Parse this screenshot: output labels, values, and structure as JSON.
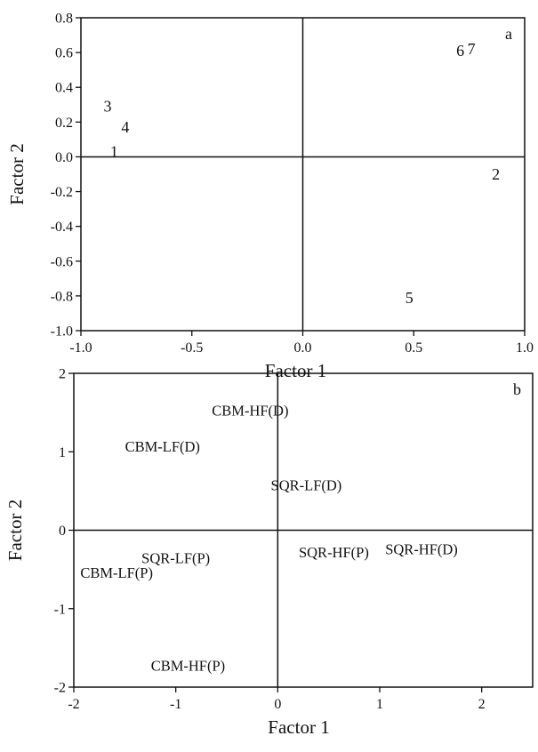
{
  "chart_data": [
    {
      "type": "scatter",
      "panel_label": "a",
      "xlabel": "Factor 1",
      "ylabel": "Factor 2",
      "xlim": [
        -1.0,
        1.0
      ],
      "ylim": [
        -1.0,
        0.8
      ],
      "xticks": [
        "-1.0",
        "-0.5",
        "0.0",
        "0.5",
        "1.0"
      ],
      "xtick_values": [
        -1.0,
        -0.5,
        0.0,
        0.5,
        1.0
      ],
      "yticks": [
        "0.8",
        "0.6",
        "0.4",
        "0.2",
        "0.0",
        "-0.2",
        "-0.4",
        "-0.6",
        "-0.8",
        "-1.0"
      ],
      "ytick_values": [
        0.8,
        0.6,
        0.4,
        0.2,
        0.0,
        -0.2,
        -0.4,
        -0.6,
        -0.8,
        -1.0
      ],
      "points": [
        {
          "label": "1",
          "x": -0.85,
          "y": 0.03
        },
        {
          "label": "2",
          "x": 0.87,
          "y": -0.1
        },
        {
          "label": "3",
          "x": -0.88,
          "y": 0.29
        },
        {
          "label": "4",
          "x": -0.8,
          "y": 0.17
        },
        {
          "label": "5",
          "x": 0.48,
          "y": -0.81
        },
        {
          "label": "6",
          "x": 0.71,
          "y": 0.61
        },
        {
          "label": "7",
          "x": 0.76,
          "y": 0.62
        }
      ]
    },
    {
      "type": "scatter",
      "panel_label": "b",
      "xlabel": "Factor 1",
      "ylabel": "Factor 2",
      "xlim": [
        -2,
        2.5
      ],
      "ylim": [
        -2,
        2
      ],
      "xticks": [
        "-2",
        "-1",
        "0",
        "1",
        "2"
      ],
      "xtick_values": [
        -2,
        -1,
        0,
        1,
        2
      ],
      "yticks": [
        "2",
        "1",
        "0",
        "-1",
        "-2"
      ],
      "ytick_values": [
        2,
        1,
        0,
        -1,
        -2
      ],
      "points": [
        {
          "label": "CBM-HF(D)",
          "x": -0.27,
          "y": 1.53
        },
        {
          "label": "CBM-LF(D)",
          "x": -1.13,
          "y": 1.07
        },
        {
          "label": "SQR-LF(D)",
          "x": 0.28,
          "y": 0.58
        },
        {
          "label": "SQR-LF(P)",
          "x": -1.0,
          "y": -0.35
        },
        {
          "label": "CBM-LF(P)",
          "x": -1.58,
          "y": -0.54
        },
        {
          "label": "SQR-HF(P)",
          "x": 0.55,
          "y": -0.28
        },
        {
          "label": "SQR-HF(D)",
          "x": 1.41,
          "y": -0.24
        },
        {
          "label": "CBM-HF(P)",
          "x": -0.88,
          "y": -1.72
        }
      ]
    }
  ]
}
